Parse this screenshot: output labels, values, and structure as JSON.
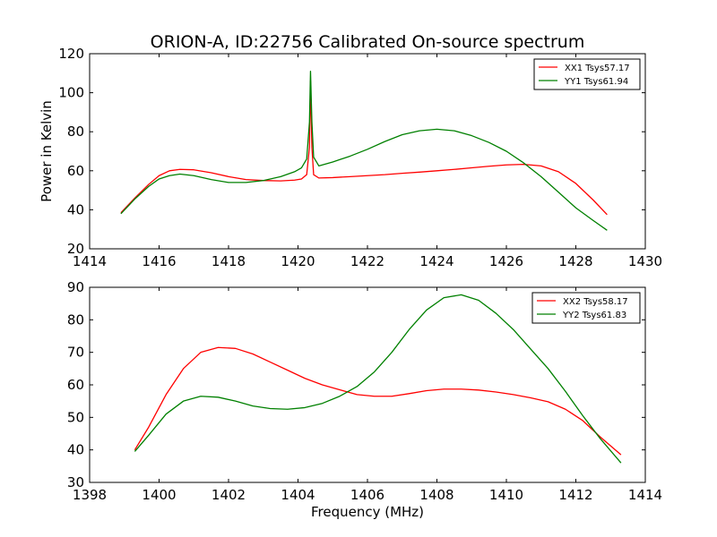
{
  "title": "ORION-A, ID:22756 Calibrated On-source spectrum",
  "chart_data": [
    {
      "type": "line",
      "ylabel": "Power in Kelvin",
      "xlabel": "",
      "xlim": [
        1414,
        1430
      ],
      "ylim": [
        20,
        120
      ],
      "xticks": [
        1414,
        1416,
        1418,
        1420,
        1422,
        1424,
        1426,
        1428,
        1430
      ],
      "yticks": [
        20,
        40,
        60,
        80,
        100,
        120
      ],
      "legend_position": "top-right",
      "series": [
        {
          "name": "XX1 Tsys57.17",
          "color": "#ff0000",
          "x": [
            1414.9,
            1415.3,
            1415.7,
            1416.0,
            1416.3,
            1416.6,
            1417.0,
            1417.5,
            1418.0,
            1418.5,
            1419.0,
            1419.5,
            1419.9,
            1420.1,
            1420.25,
            1420.33,
            1420.36,
            1420.4,
            1420.45,
            1420.6,
            1421.0,
            1421.5,
            1422.0,
            1422.5,
            1423.0,
            1423.5,
            1424.0,
            1424.5,
            1425.0,
            1425.5,
            1426.0,
            1426.5,
            1427.0,
            1427.5,
            1428.0,
            1428.5,
            1428.9
          ],
          "y": [
            38.5,
            46,
            53,
            57.5,
            60,
            60.7,
            60.5,
            59,
            57,
            55.5,
            55,
            54.8,
            55.2,
            55.8,
            58,
            72,
            106,
            72,
            58,
            56.3,
            56.5,
            57,
            57.5,
            58,
            58.7,
            59.3,
            60,
            60.7,
            61.5,
            62.3,
            63,
            63.3,
            62.5,
            59.5,
            53.5,
            45,
            37.5
          ]
        },
        {
          "name": "YY1 Tsys61.94",
          "color": "#008000",
          "x": [
            1414.9,
            1415.3,
            1415.7,
            1416.0,
            1416.3,
            1416.6,
            1417.0,
            1417.5,
            1418.0,
            1418.5,
            1419.0,
            1419.5,
            1419.9,
            1420.1,
            1420.25,
            1420.33,
            1420.36,
            1420.4,
            1420.45,
            1420.6,
            1421.0,
            1421.5,
            1422.0,
            1422.5,
            1423.0,
            1423.5,
            1424.0,
            1424.5,
            1425.0,
            1425.5,
            1426.0,
            1426.5,
            1427.0,
            1427.5,
            1428.0,
            1428.5,
            1428.9
          ],
          "y": [
            38,
            45.5,
            52,
            55.8,
            57.5,
            58.3,
            57.5,
            55.5,
            54,
            54,
            55,
            57,
            59.5,
            61.5,
            66,
            85,
            111,
            85,
            67,
            62.5,
            64.5,
            67.5,
            71,
            75,
            78.5,
            80.5,
            81.3,
            80.5,
            78,
            74.5,
            70,
            64,
            57,
            49,
            41,
            34.5,
            29.5
          ]
        }
      ]
    },
    {
      "type": "line",
      "ylabel": "",
      "xlabel": "Frequency (MHz)",
      "xlim": [
        1398,
        1414
      ],
      "ylim": [
        30,
        90
      ],
      "xticks": [
        1398,
        1400,
        1402,
        1404,
        1406,
        1408,
        1410,
        1412,
        1414
      ],
      "yticks": [
        30,
        40,
        50,
        60,
        70,
        80,
        90
      ],
      "legend_position": "top-right",
      "series": [
        {
          "name": "XX2 Tsys58.17",
          "color": "#ff0000",
          "x": [
            1399.3,
            1399.7,
            1400.2,
            1400.7,
            1401.2,
            1401.7,
            1402.2,
            1402.7,
            1403.2,
            1403.7,
            1404.2,
            1404.7,
            1405.2,
            1405.7,
            1406.2,
            1406.7,
            1407.2,
            1407.7,
            1408.2,
            1408.7,
            1409.2,
            1409.7,
            1410.2,
            1410.7,
            1411.2,
            1411.7,
            1412.2,
            1412.7,
            1413.3
          ],
          "y": [
            40,
            47,
            57,
            65,
            70,
            71.5,
            71.2,
            69.5,
            67,
            64.5,
            62,
            60,
            58.5,
            57,
            56.5,
            56.5,
            57.3,
            58.2,
            58.7,
            58.7,
            58.4,
            57.8,
            57,
            56,
            54.8,
            52.5,
            49,
            44,
            38.5
          ]
        },
        {
          "name": "YY2 Tsys61.83",
          "color": "#008000",
          "x": [
            1399.3,
            1399.7,
            1400.2,
            1400.7,
            1401.2,
            1401.7,
            1402.2,
            1402.7,
            1403.2,
            1403.7,
            1404.2,
            1404.7,
            1405.2,
            1405.7,
            1406.2,
            1406.7,
            1407.2,
            1407.7,
            1408.2,
            1408.7,
            1409.2,
            1409.7,
            1410.2,
            1410.7,
            1411.2,
            1411.7,
            1412.2,
            1412.7,
            1413.3
          ],
          "y": [
            39.5,
            44.5,
            51,
            55,
            56.5,
            56.2,
            55,
            53.5,
            52.7,
            52.5,
            53,
            54.3,
            56.5,
            59.5,
            64,
            70,
            77,
            83,
            86.8,
            87.7,
            86,
            82,
            77,
            71,
            65,
            58,
            50.5,
            43.5,
            36
          ]
        }
      ]
    }
  ]
}
